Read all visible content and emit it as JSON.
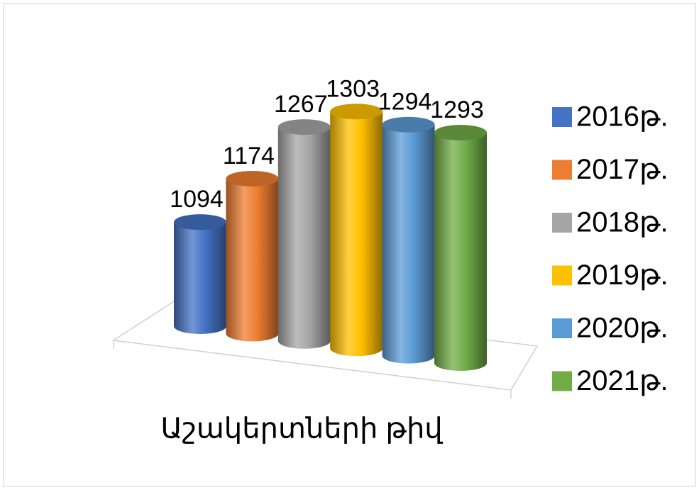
{
  "chart_data": {
    "type": "bar",
    "categories": [
      "Աշակերտների թիվ"
    ],
    "series": [
      {
        "name": "2016թ.",
        "color": "#4472c4",
        "values": [
          1094
        ]
      },
      {
        "name": "2017թ.",
        "color": "#ed7d31",
        "values": [
          1174
        ]
      },
      {
        "name": "2018թ.",
        "color": "#a5a5a5",
        "values": [
          1267
        ]
      },
      {
        "name": "2019թ.",
        "color": "#ffc000",
        "values": [
          1303
        ]
      },
      {
        "name": "2020թ.",
        "color": "#5b9bd5",
        "values": [
          1294
        ]
      },
      {
        "name": "2021թ.",
        "color": "#70ad47",
        "values": [
          1293
        ]
      }
    ],
    "ylim": [
      930,
      1350
    ],
    "legend": "right"
  }
}
